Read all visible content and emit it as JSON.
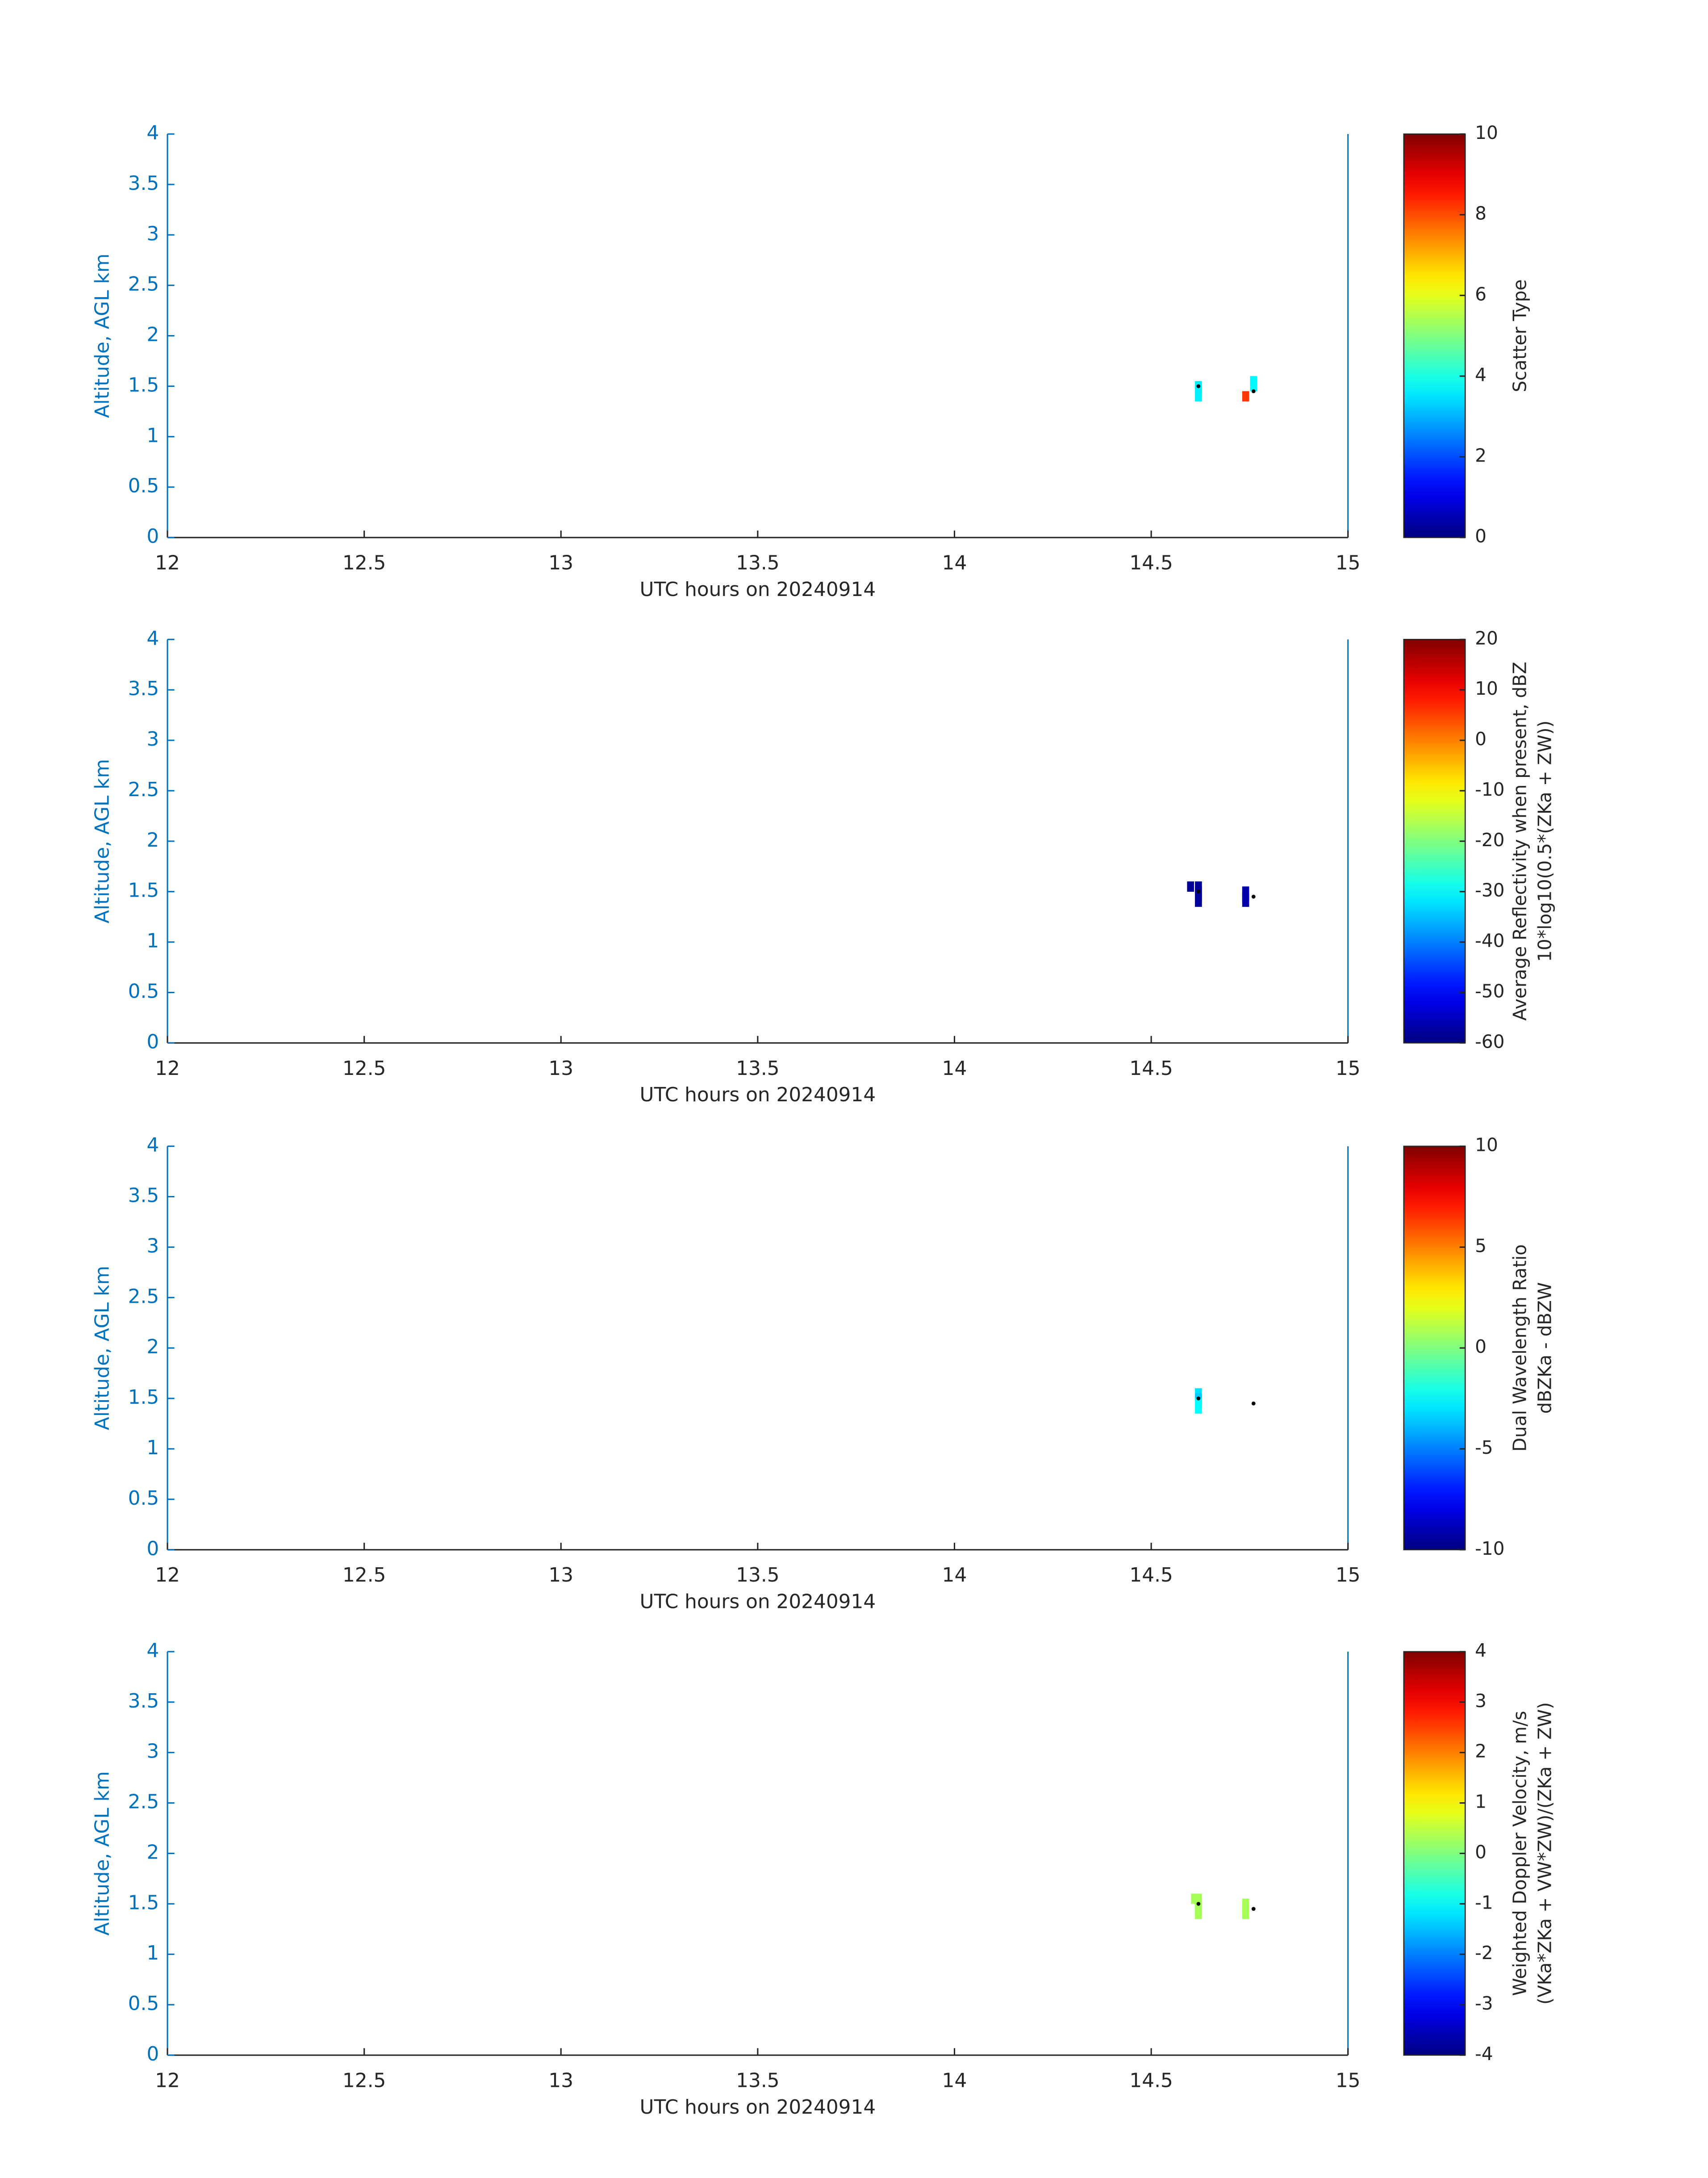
{
  "chart_data": [
    {
      "type": "heatmap",
      "xlabel": "UTC hours on 20240914",
      "ylabel": "Altitude, AGL km",
      "xlim": [
        12,
        15
      ],
      "ylim": [
        0,
        4
      ],
      "xticks": [
        12,
        12.5,
        13,
        13.5,
        14,
        14.5,
        15
      ],
      "yticks": [
        0,
        0.5,
        1,
        1.5,
        2,
        2.5,
        3,
        3.5,
        4
      ],
      "colormap": "jet",
      "clim": [
        0,
        10
      ],
      "cticks": [
        0,
        2,
        4,
        6,
        8,
        10
      ],
      "clabel": [
        "Scatter Type"
      ],
      "cells": {
        "x": [
          14.62,
          14.62,
          14.62,
          14.76,
          14.76,
          14.74
        ],
        "y": [
          1.4,
          1.45,
          1.5,
          1.5,
          1.55,
          1.4
        ],
        "values": [
          3.6,
          3.6,
          3.6,
          3.7,
          3.7,
          8.2
        ]
      },
      "markers": {
        "color": "#000000",
        "x": [
          14.62,
          14.76
        ],
        "y": [
          1.5,
          1.45
        ]
      }
    },
    {
      "type": "heatmap",
      "xlabel": "UTC hours on 20240914",
      "ylabel": "Altitude, AGL km",
      "xlim": [
        12,
        15
      ],
      "ylim": [
        0,
        4
      ],
      "xticks": [
        12,
        12.5,
        13,
        13.5,
        14,
        14.5,
        15
      ],
      "yticks": [
        0,
        0.5,
        1,
        1.5,
        2,
        2.5,
        3,
        3.5,
        4
      ],
      "colormap": "jet",
      "clim": [
        -60,
        20
      ],
      "cticks": [
        -60,
        -50,
        -40,
        -30,
        -20,
        -10,
        0,
        10,
        20
      ],
      "clabel": [
        "Average Reflectivity when present, dBZ",
        "10*log10(0.5*(ZKa + ZW))"
      ],
      "cells": {
        "x": [
          14.6,
          14.62,
          14.62,
          14.62,
          14.62,
          14.74,
          14.74,
          14.74
        ],
        "y": [
          1.55,
          1.55,
          1.5,
          1.45,
          1.4,
          1.5,
          1.45,
          1.4
        ],
        "values": [
          -58,
          -58,
          -58,
          -58,
          -58,
          -57,
          -57,
          -57
        ]
      },
      "markers": {
        "color": "#000000",
        "x": [
          14.62,
          14.76
        ],
        "y": [
          1.5,
          1.45
        ]
      }
    },
    {
      "type": "heatmap",
      "xlabel": "UTC hours on 20240914",
      "ylabel": "Altitude, AGL km",
      "xlim": [
        12,
        15
      ],
      "ylim": [
        0,
        4
      ],
      "xticks": [
        12,
        12.5,
        13,
        13.5,
        14,
        14.5,
        15
      ],
      "yticks": [
        0,
        0.5,
        1,
        1.5,
        2,
        2.5,
        3,
        3.5,
        4
      ],
      "colormap": "jet",
      "clim": [
        -10,
        10
      ],
      "cticks": [
        -10,
        -5,
        0,
        5,
        10
      ],
      "clabel": [
        "Dual Wavelength Ratio",
        "dBZKa - dBZW"
      ],
      "cells": {
        "x": [
          14.62,
          14.62,
          14.62,
          14.62
        ],
        "y": [
          1.55,
          1.5,
          1.45,
          1.4
        ],
        "values": [
          -3,
          -3.5,
          -2.5,
          -2.5
        ]
      },
      "markers": {
        "color": "#000000",
        "x": [
          14.62,
          14.76
        ],
        "y": [
          1.5,
          1.45
        ]
      }
    },
    {
      "type": "heatmap",
      "xlabel": "UTC hours on 20240914",
      "ylabel": "Altitude, AGL km",
      "xlim": [
        12,
        15
      ],
      "ylim": [
        0,
        4
      ],
      "xticks": [
        12,
        12.5,
        13,
        13.5,
        14,
        14.5,
        15
      ],
      "yticks": [
        0,
        0.5,
        1,
        1.5,
        2,
        2.5,
        3,
        3.5,
        4
      ],
      "colormap": "jet",
      "clim": [
        -4,
        4
      ],
      "cticks": [
        -4,
        -3,
        -2,
        -1,
        0,
        1,
        2,
        3,
        4
      ],
      "clabel": [
        "Weighted Doppler Velocity, m/s",
        "(VKa*ZKa + VW*ZW)/(ZKa + ZW)"
      ],
      "cells": {
        "x": [
          14.61,
          14.62,
          14.62,
          14.62,
          14.62,
          14.74,
          14.74,
          14.74
        ],
        "y": [
          1.55,
          1.55,
          1.5,
          1.45,
          1.4,
          1.5,
          1.45,
          1.4
        ],
        "values": [
          0.3,
          0.3,
          0.3,
          0.3,
          0.3,
          0.3,
          0.3,
          0.3
        ]
      },
      "markers": {
        "color": "#000000",
        "x": [
          14.62,
          14.76
        ],
        "y": [
          1.5,
          1.45
        ]
      }
    }
  ]
}
